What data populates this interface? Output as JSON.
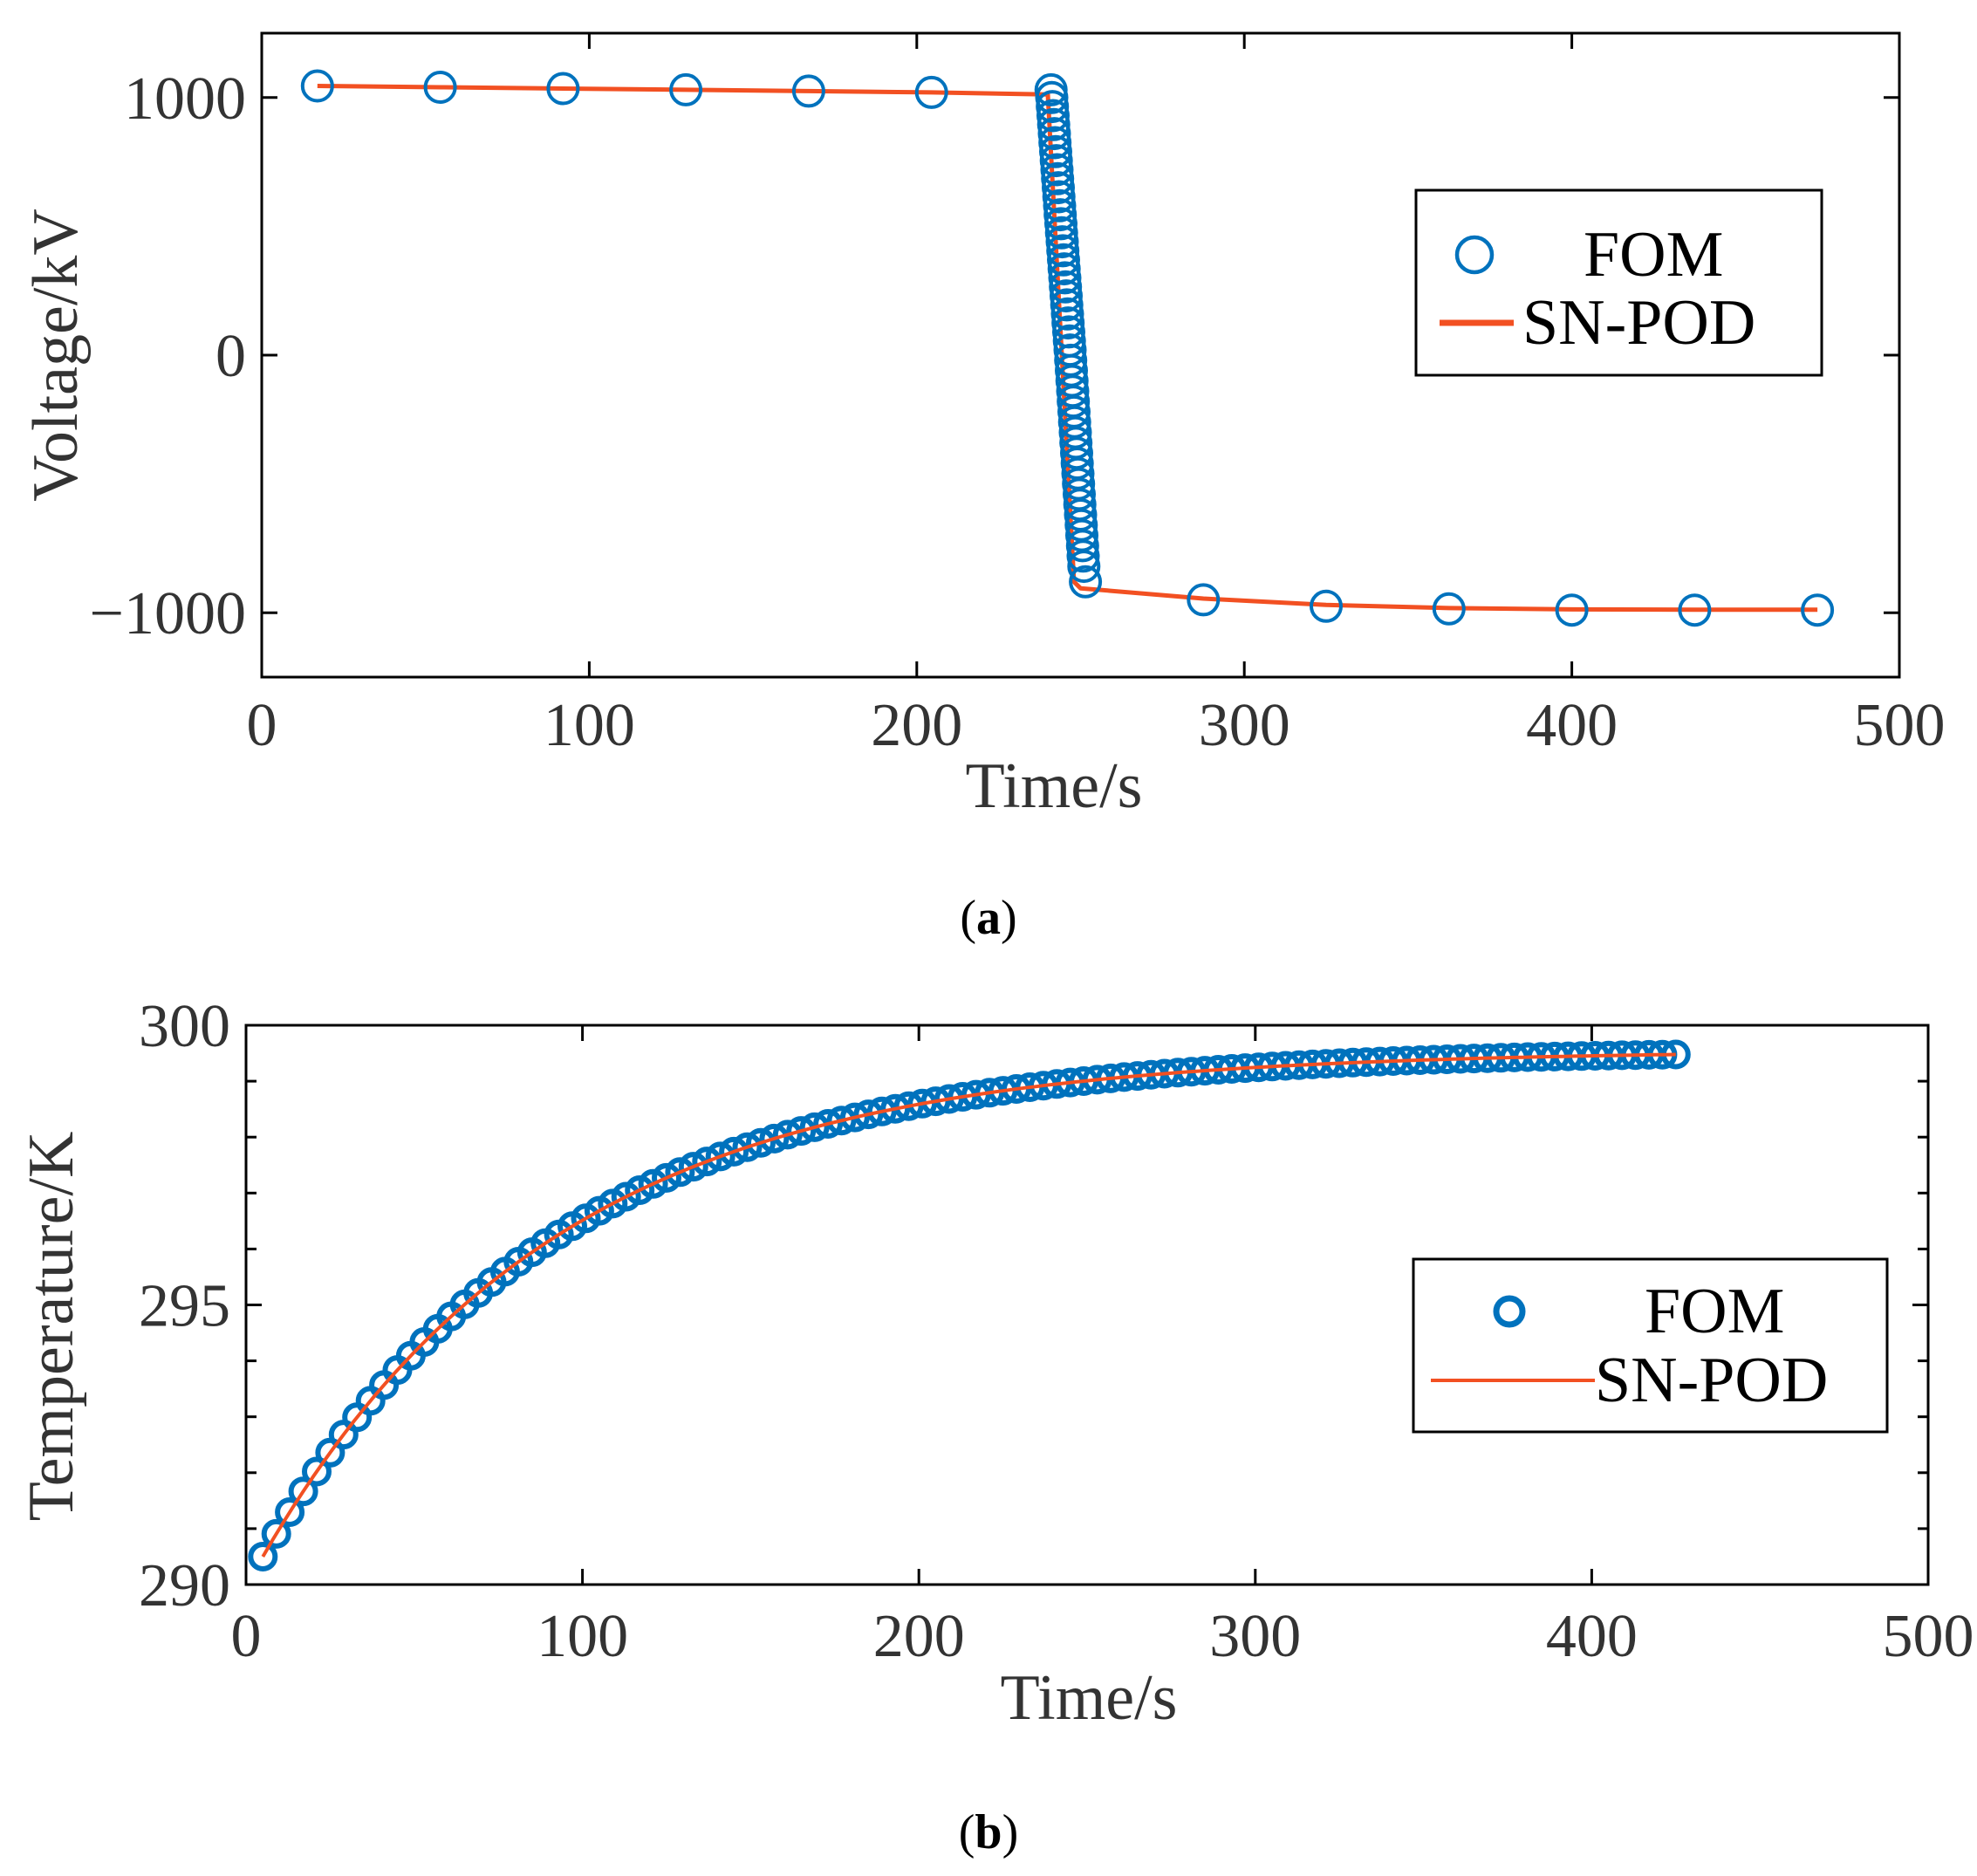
{
  "colors": {
    "fom": "#0072BD",
    "snpod": "#F25022",
    "axis": "#000000",
    "text": "#333333"
  },
  "chart_data": [
    {
      "type": "line",
      "panel_label": "a",
      "xlabel": "Time/s",
      "ylabel": "Voltage/kV",
      "xlim": [
        0,
        500
      ],
      "ylim": [
        -1250,
        1250
      ],
      "xticks": [
        0,
        100,
        200,
        300,
        400,
        500
      ],
      "yticks": [
        -1000,
        0,
        1000
      ],
      "x_tick_labels": [
        "0",
        "100",
        "200",
        "300",
        "400",
        "500"
      ],
      "y_tick_labels": [
        "−1000",
        "0",
        "1000"
      ],
      "legend": {
        "location": "right",
        "entries": [
          "FOM",
          "SN-POD"
        ]
      },
      "series": [
        {
          "name": "FOM",
          "style": "circle-markers",
          "x": [
            17,
            54.5,
            92,
            129.5,
            167,
            204.5,
            241,
            241.2,
            241.4,
            241.6,
            241.8,
            242,
            242.2,
            242.4,
            242.6,
            242.8,
            243,
            243.2,
            243.4,
            243.6,
            243.8,
            244,
            244.2,
            244.4,
            244.6,
            244.8,
            245,
            245.2,
            245.4,
            245.6,
            245.8,
            246,
            246.2,
            246.4,
            246.6,
            246.8,
            247,
            247.2,
            247.4,
            247.6,
            247.8,
            248,
            248.2,
            248.4,
            248.6,
            248.8,
            249,
            249.2,
            249.4,
            249.6,
            249.8,
            250,
            250.2,
            250.4,
            250.6,
            250.8,
            251,
            251.5,
            287.5,
            325,
            362.5,
            400,
            437.5,
            475
          ],
          "y": [
            1045,
            1040,
            1035,
            1030,
            1025,
            1020,
            1030,
            1000,
            965,
            930,
            895,
            860,
            825,
            790,
            755,
            720,
            685,
            650,
            615,
            580,
            545,
            510,
            475,
            440,
            405,
            370,
            335,
            300,
            265,
            230,
            195,
            160,
            125,
            90,
            55,
            20,
            -20,
            -60,
            -100,
            -140,
            -180,
            -220,
            -260,
            -300,
            -340,
            -380,
            -420,
            -460,
            -500,
            -540,
            -580,
            -620,
            -660,
            -700,
            -740,
            -780,
            -820,
            -880,
            -950,
            -975,
            -985,
            -990,
            -990,
            -990
          ]
        },
        {
          "name": "SN-POD",
          "style": "line",
          "x": [
            17,
            54.5,
            92,
            129.5,
            167,
            204.5,
            240,
            248,
            250,
            287.5,
            325,
            362.5,
            400,
            437.5,
            475
          ],
          "y": [
            1045,
            1040,
            1035,
            1030,
            1025,
            1020,
            1012,
            -880,
            -905,
            -945,
            -970,
            -982,
            -987,
            -988,
            -988
          ]
        }
      ]
    },
    {
      "type": "line",
      "panel_label": "b",
      "xlabel": "Time/s",
      "ylabel": "Temperature/K",
      "xlim": [
        0,
        500
      ],
      "ylim": [
        290,
        300
      ],
      "xticks": [
        0,
        100,
        200,
        300,
        400,
        500
      ],
      "yticks": [
        290,
        295,
        300
      ],
      "x_tick_labels": [
        "0",
        "100",
        "200",
        "300",
        "400",
        "500"
      ],
      "y_tick_labels": [
        "290",
        "295",
        "300"
      ],
      "legend": {
        "location": "right",
        "entries": [
          "FOM",
          "SN-POD"
        ]
      },
      "series": [
        {
          "name": "FOM",
          "style": "circle-markers",
          "tau": 87,
          "t0": 5,
          "t1": 425,
          "n": 106,
          "y0": 290.5,
          "y_final": 299.55
        },
        {
          "name": "SN-POD",
          "style": "line",
          "tau": 87,
          "t0": 5,
          "t1": 425,
          "n": 140,
          "y0": 290.5,
          "y_final": 299.55
        }
      ]
    }
  ]
}
